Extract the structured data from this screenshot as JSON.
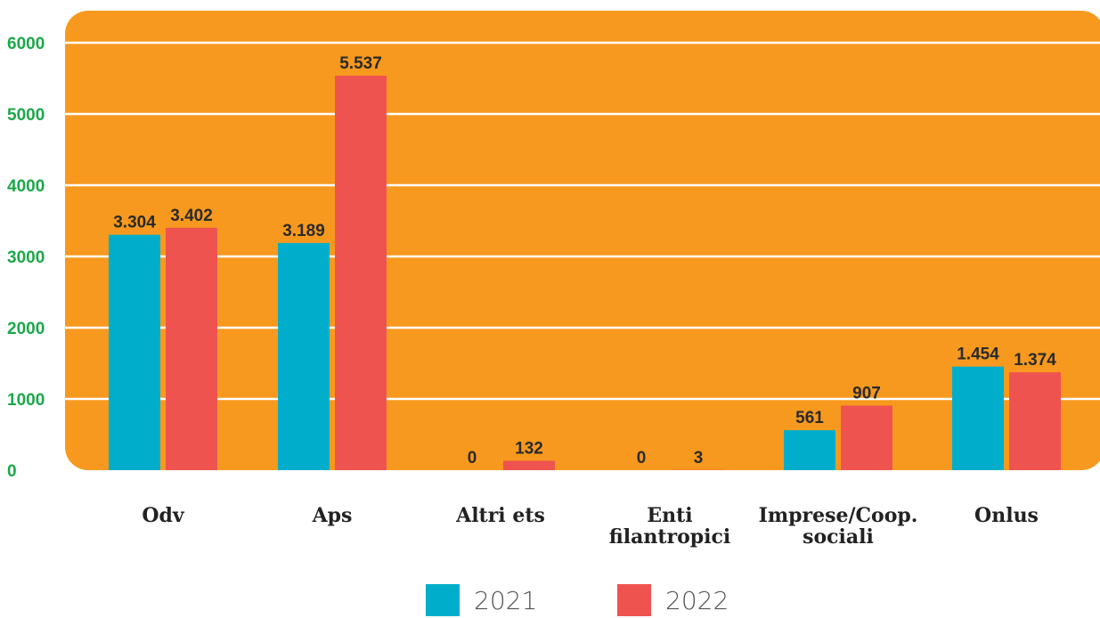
{
  "chart_data": {
    "type": "bar",
    "categories": [
      "Odv",
      "Aps",
      "Altri ets",
      "Enti\nfilantropici",
      "Imprese/Coop.\nsociali",
      "Onlus"
    ],
    "series": [
      {
        "name": "2021",
        "values": [
          3304,
          3189,
          0,
          0,
          561,
          1454
        ],
        "labels": [
          "3.304",
          "3.189",
          "0",
          "0",
          "561",
          "1.454"
        ],
        "color": "#00AECB"
      },
      {
        "name": "2022",
        "values": [
          3402,
          5537,
          132,
          3,
          907,
          1374
        ],
        "labels": [
          "3.402",
          "5.537",
          "132",
          "3",
          "907",
          "1.374"
        ],
        "color": "#EF5350"
      }
    ],
    "ylim": [
      0,
      6000
    ],
    "yticks": [
      0,
      1000,
      2000,
      3000,
      4000,
      5000,
      6000
    ],
    "grid": true,
    "legend_position": "bottom-center",
    "colors": {
      "plot_background": "#F7991F",
      "gridline": "#FFFFFF",
      "tick_labels": "#1BA84A"
    }
  }
}
